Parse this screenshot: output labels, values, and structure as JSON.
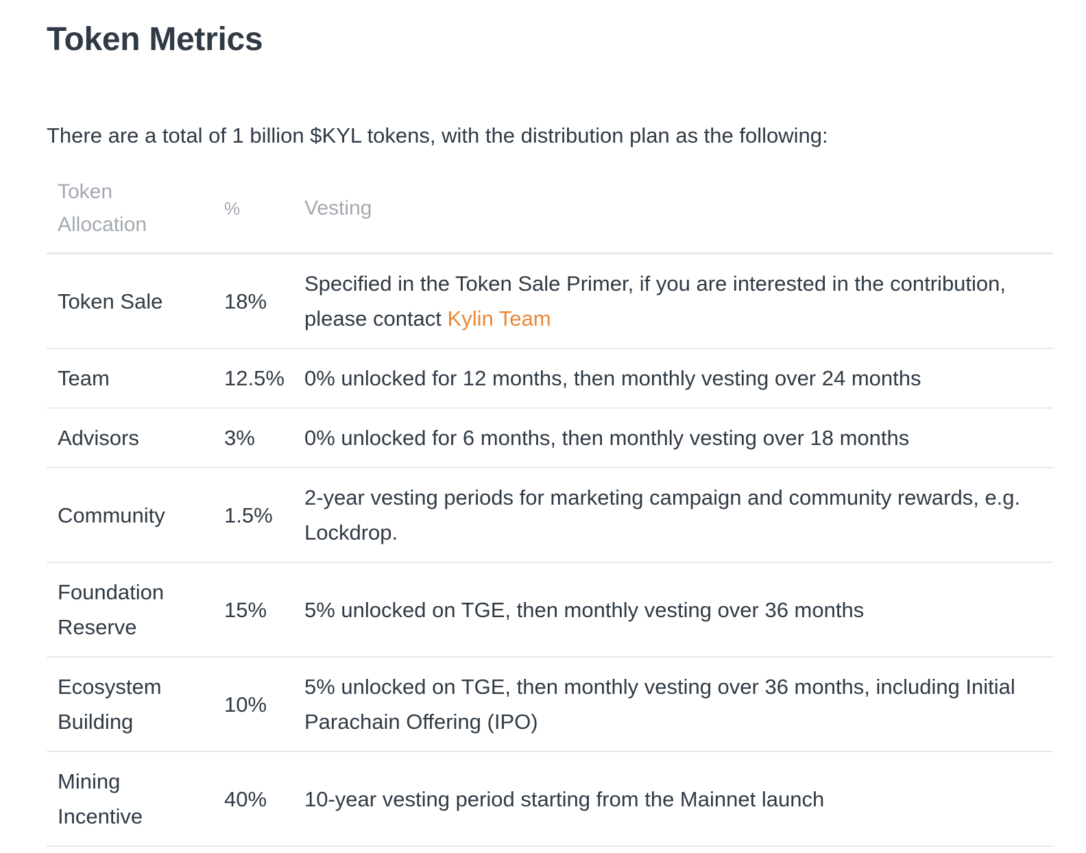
{
  "heading": "Token Metrics",
  "intro": "There are a total of 1 billion $KYL tokens, with the distribution plan as the following:",
  "table": {
    "headers": {
      "allocation_line1": "Token",
      "allocation_line2": "Allocation",
      "percent": "%",
      "vesting": "Vesting"
    },
    "rows": [
      {
        "allocation": "Token Sale",
        "percent": "18%",
        "vesting": "Specified in the Token Sale Primer, if you are interested in the contribution, please contact ",
        "link": "Kylin Team"
      },
      {
        "allocation": "Team",
        "percent": "12.5%",
        "vesting": "0% unlocked for 12 months, then monthly vesting over 24 months"
      },
      {
        "allocation": "Advisors",
        "percent": "3%",
        "vesting": "0% unlocked for 6 months, then monthly vesting over 18 months"
      },
      {
        "allocation": "Community",
        "percent": "1.5%",
        "vesting": "2-year vesting periods for marketing campaign and community rewards, e.g. Lockdrop."
      },
      {
        "allocation": "Foundation Reserve",
        "percent": "15%",
        "vesting": "5% unlocked on TGE, then monthly vesting over 36 months"
      },
      {
        "allocation": "Ecosystem Building",
        "percent": "10%",
        "vesting": "5% unlocked on TGE, then monthly vesting over 36 months, including Initial Parachain Offering (IPO)"
      },
      {
        "allocation": "Mining Incentive",
        "percent": "40%",
        "vesting": "10-year vesting period starting from the Mainnet launch"
      }
    ]
  },
  "colors": {
    "text": "#2f3a45",
    "header_text": "#a3a9b0",
    "link": "#e8883a",
    "divider": "#e6e9ed"
  }
}
